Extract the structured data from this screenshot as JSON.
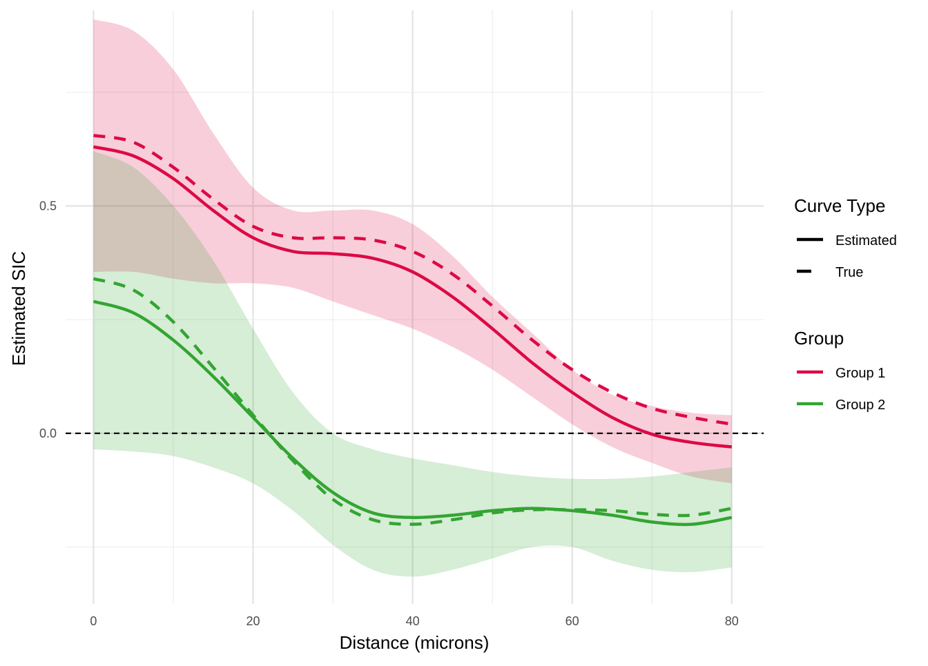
{
  "chart_data": {
    "type": "line",
    "xlabel": "Distance (microns)",
    "ylabel": "Estimated SIC",
    "xlim": [
      -3.5,
      84
    ],
    "ylim": [
      -0.375,
      0.93
    ],
    "x_ticks": [
      0,
      20,
      40,
      60,
      80
    ],
    "y_ticks": [
      0.0,
      0.5
    ],
    "y_tick_labels": [
      "0.0",
      "0.5"
    ],
    "reference_line": {
      "y": 0.0,
      "style": "dashed",
      "color": "#000000"
    },
    "grid": true,
    "legend_position": "right",
    "colors": {
      "group1": "#DC0A45",
      "group2": "#33A532"
    },
    "legends": [
      {
        "title": "Curve Type",
        "entries": [
          {
            "label": "Estimated",
            "style": "solid"
          },
          {
            "label": "True",
            "style": "dashed"
          }
        ]
      },
      {
        "title": "Group",
        "entries": [
          {
            "label": "Group 1",
            "color": "#DC0A45"
          },
          {
            "label": "Group 2",
            "color": "#33A532"
          }
        ]
      }
    ],
    "x": [
      0,
      5,
      10,
      15,
      20,
      25,
      30,
      35,
      40,
      45,
      50,
      55,
      60,
      65,
      70,
      75,
      80
    ],
    "series": [
      {
        "name": "Group 1",
        "curve_type": "Estimated",
        "color": "#DC0A45",
        "values": [
          0.63,
          0.61,
          0.56,
          0.49,
          0.43,
          0.4,
          0.395,
          0.385,
          0.355,
          0.3,
          0.23,
          0.155,
          0.09,
          0.035,
          -0.002,
          -0.02,
          -0.03
        ]
      },
      {
        "name": "Group 1",
        "curve_type": "True",
        "color": "#DC0A45",
        "values": [
          0.655,
          0.64,
          0.585,
          0.515,
          0.455,
          0.43,
          0.43,
          0.425,
          0.4,
          0.35,
          0.28,
          0.205,
          0.14,
          0.09,
          0.055,
          0.035,
          0.02
        ]
      },
      {
        "name": "Group 2",
        "curve_type": "Estimated",
        "color": "#33A532",
        "values": [
          0.29,
          0.265,
          0.205,
          0.125,
          0.035,
          -0.055,
          -0.13,
          -0.175,
          -0.185,
          -0.18,
          -0.17,
          -0.165,
          -0.17,
          -0.18,
          -0.195,
          -0.2,
          -0.185
        ]
      },
      {
        "name": "Group 2",
        "curve_type": "True",
        "color": "#33A532",
        "values": [
          0.34,
          0.315,
          0.245,
          0.145,
          0.04,
          -0.06,
          -0.145,
          -0.19,
          -0.2,
          -0.19,
          -0.175,
          -0.168,
          -0.168,
          -0.17,
          -0.178,
          -0.18,
          -0.165
        ]
      }
    ],
    "bands": [
      {
        "group": "Group 1",
        "color": "#DC0A45",
        "opacity": 0.2,
        "lower": [
          0.355,
          0.355,
          0.34,
          0.33,
          0.33,
          0.32,
          0.29,
          0.26,
          0.23,
          0.19,
          0.14,
          0.08,
          0.02,
          -0.03,
          -0.065,
          -0.095,
          -0.11
        ],
        "upper": [
          0.91,
          0.885,
          0.8,
          0.66,
          0.54,
          0.49,
          0.49,
          0.49,
          0.46,
          0.39,
          0.3,
          0.22,
          0.14,
          0.085,
          0.06,
          0.045,
          0.04
        ]
      },
      {
        "group": "Group 2",
        "color": "#33A532",
        "opacity": 0.2,
        "lower": [
          -0.035,
          -0.04,
          -0.05,
          -0.075,
          -0.11,
          -0.17,
          -0.245,
          -0.3,
          -0.315,
          -0.3,
          -0.275,
          -0.25,
          -0.25,
          -0.28,
          -0.3,
          -0.305,
          -0.295
        ],
        "upper": [
          0.62,
          0.585,
          0.5,
          0.38,
          0.23,
          0.09,
          0.0,
          -0.035,
          -0.055,
          -0.07,
          -0.085,
          -0.095,
          -0.1,
          -0.1,
          -0.095,
          -0.085,
          -0.075
        ]
      }
    ]
  }
}
